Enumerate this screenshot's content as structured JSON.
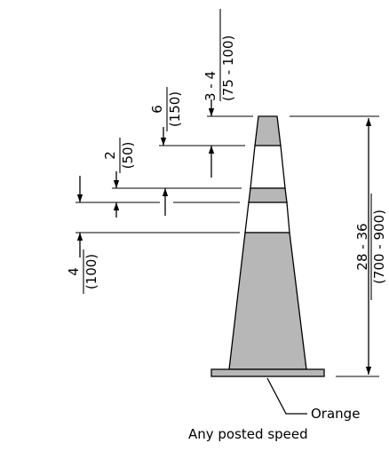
{
  "colors": {
    "cone_fill": "#b7b7b7",
    "stripe_fill": "#ffffff",
    "line": "#000000"
  },
  "dimensions": {
    "top_band": {
      "num": "3 - 4",
      "den": "(75 - 100)"
    },
    "white_stripe_1": {
      "num": "6",
      "den": "(150)"
    },
    "gap_band": {
      "num": "2",
      "den": "(50)"
    },
    "white_stripe_2": {
      "num": "4",
      "den": "(100)"
    },
    "overall_height": {
      "num": "28 - 36",
      "den": "(700 - 900)"
    }
  },
  "labels": {
    "color_note": "Orange",
    "usage_note": "Any posted speed"
  }
}
